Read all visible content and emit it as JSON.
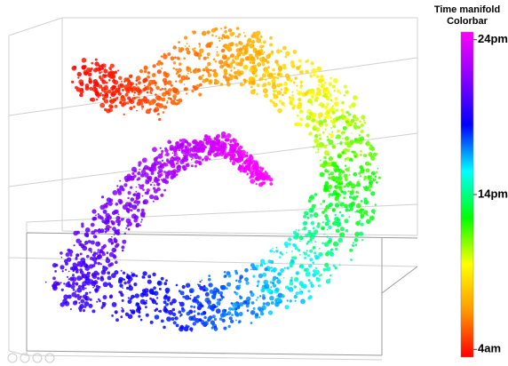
{
  "chart_data": {
    "type": "scatter3d",
    "colorbar": {
      "title_lines": [
        "Time manifold",
        "Colorbar"
      ],
      "clim": [
        3.5,
        24.5
      ],
      "ticks": [
        {
          "value": 4,
          "label": "4am"
        },
        {
          "value": 14,
          "label": "14pm"
        },
        {
          "value": 24,
          "label": "24pm"
        }
      ],
      "colors": [
        "#ff0000",
        "#ff9900",
        "#ffff00",
        "#00ff00",
        "#00ffff",
        "#0000ff",
        "#8800ff",
        "#ff00ff"
      ]
    }
  }
}
